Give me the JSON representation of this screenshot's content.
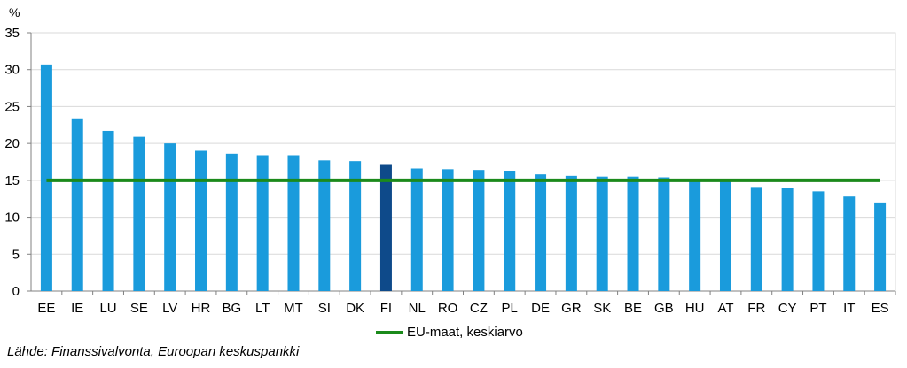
{
  "chart_data": {
    "type": "bar",
    "unit_label": "%",
    "categories": [
      "EE",
      "IE",
      "LU",
      "SE",
      "LV",
      "HR",
      "BG",
      "LT",
      "MT",
      "SI",
      "DK",
      "FI",
      "NL",
      "RO",
      "CZ",
      "PL",
      "DE",
      "GR",
      "SK",
      "BE",
      "GB",
      "HU",
      "AT",
      "FR",
      "CY",
      "PT",
      "IT",
      "ES"
    ],
    "values": [
      30.7,
      23.4,
      21.7,
      20.9,
      20.0,
      19.0,
      18.6,
      18.4,
      18.4,
      17.7,
      17.6,
      17.2,
      16.6,
      16.5,
      16.4,
      16.3,
      15.8,
      15.6,
      15.5,
      15.5,
      15.4,
      15.1,
      15.0,
      14.1,
      14.0,
      13.5,
      12.8,
      12.0
    ],
    "highlight_category": "FI",
    "average_line": {
      "name": "EU-maat, keskiarvo",
      "value": 15.0
    },
    "ylim": [
      0,
      35
    ],
    "yticks": [
      0,
      5,
      10,
      15,
      20,
      25,
      30,
      35
    ],
    "grid": true,
    "legend_placement": "bottom-center",
    "colors": {
      "bar": "#1a9bdc",
      "highlight": "#0e4a8a",
      "average": "#1b8a1b",
      "grid": "#d9d9d9",
      "axis": "#808080"
    }
  },
  "footer": {
    "source": "Lähde: Finanssivalvonta, Euroopan keskuspankki"
  }
}
